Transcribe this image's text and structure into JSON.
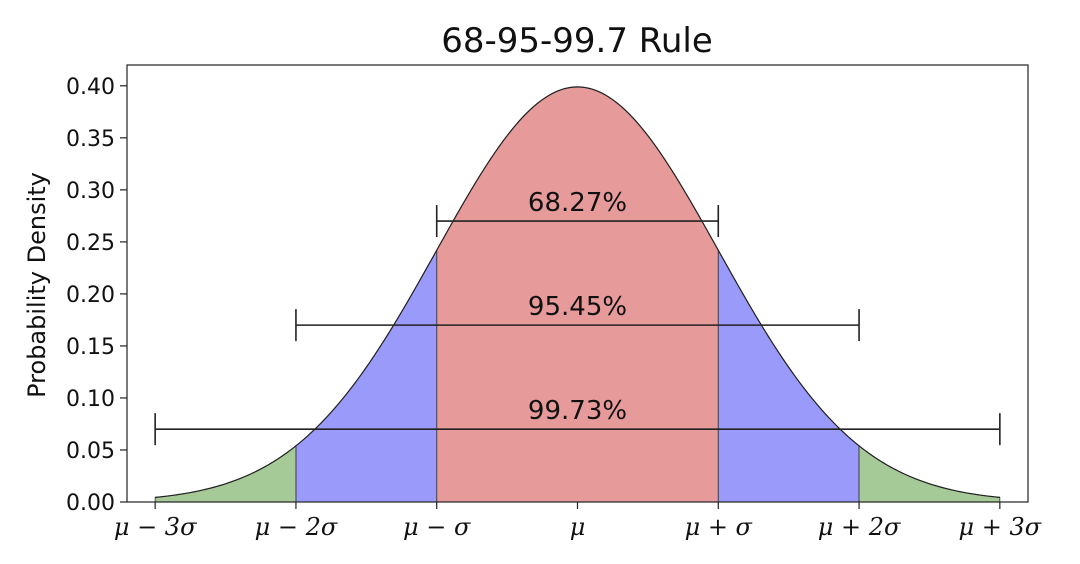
{
  "chart_data": {
    "type": "area",
    "title": "68-95-99.7 Rule",
    "xlabel": "",
    "ylabel": "Probability Density",
    "xlim": [
      -3.2,
      3.2
    ],
    "ylim": [
      0,
      0.42
    ],
    "y_ticks": [
      "0.00",
      "0.05",
      "0.10",
      "0.15",
      "0.20",
      "0.25",
      "0.30",
      "0.35",
      "0.40"
    ],
    "y_tick_values": [
      0,
      0.05,
      0.1,
      0.15,
      0.2,
      0.25,
      0.3,
      0.35,
      0.4
    ],
    "x_ticks": [
      "μ − 3σ",
      "μ − 2σ",
      "μ − σ",
      "μ",
      "μ + σ",
      "μ + 2σ",
      "μ + 3σ"
    ],
    "x_tick_values": [
      -3,
      -2,
      -1,
      0,
      1,
      2,
      3
    ],
    "curve": {
      "distribution": "normal",
      "mean": 0,
      "sd": 1,
      "x_range": [
        -3,
        3
      ]
    },
    "regions": [
      {
        "from": -1,
        "to": 1,
        "color": "#e69a9a"
      },
      {
        "from": -2,
        "to": -1,
        "color": "#9a9afa"
      },
      {
        "from": 1,
        "to": 2,
        "color": "#9a9afa"
      },
      {
        "from": -3,
        "to": -2,
        "color": "#a5c997"
      },
      {
        "from": 2,
        "to": 3,
        "color": "#a5c997"
      }
    ],
    "intervals": [
      {
        "label": "68.27%",
        "from": -1,
        "to": 1,
        "y": 0.27
      },
      {
        "label": "95.45%",
        "from": -2,
        "to": 2,
        "y": 0.17
      },
      {
        "label": "99.73%",
        "from": -3,
        "to": 3,
        "y": 0.07
      }
    ],
    "grid": false
  }
}
